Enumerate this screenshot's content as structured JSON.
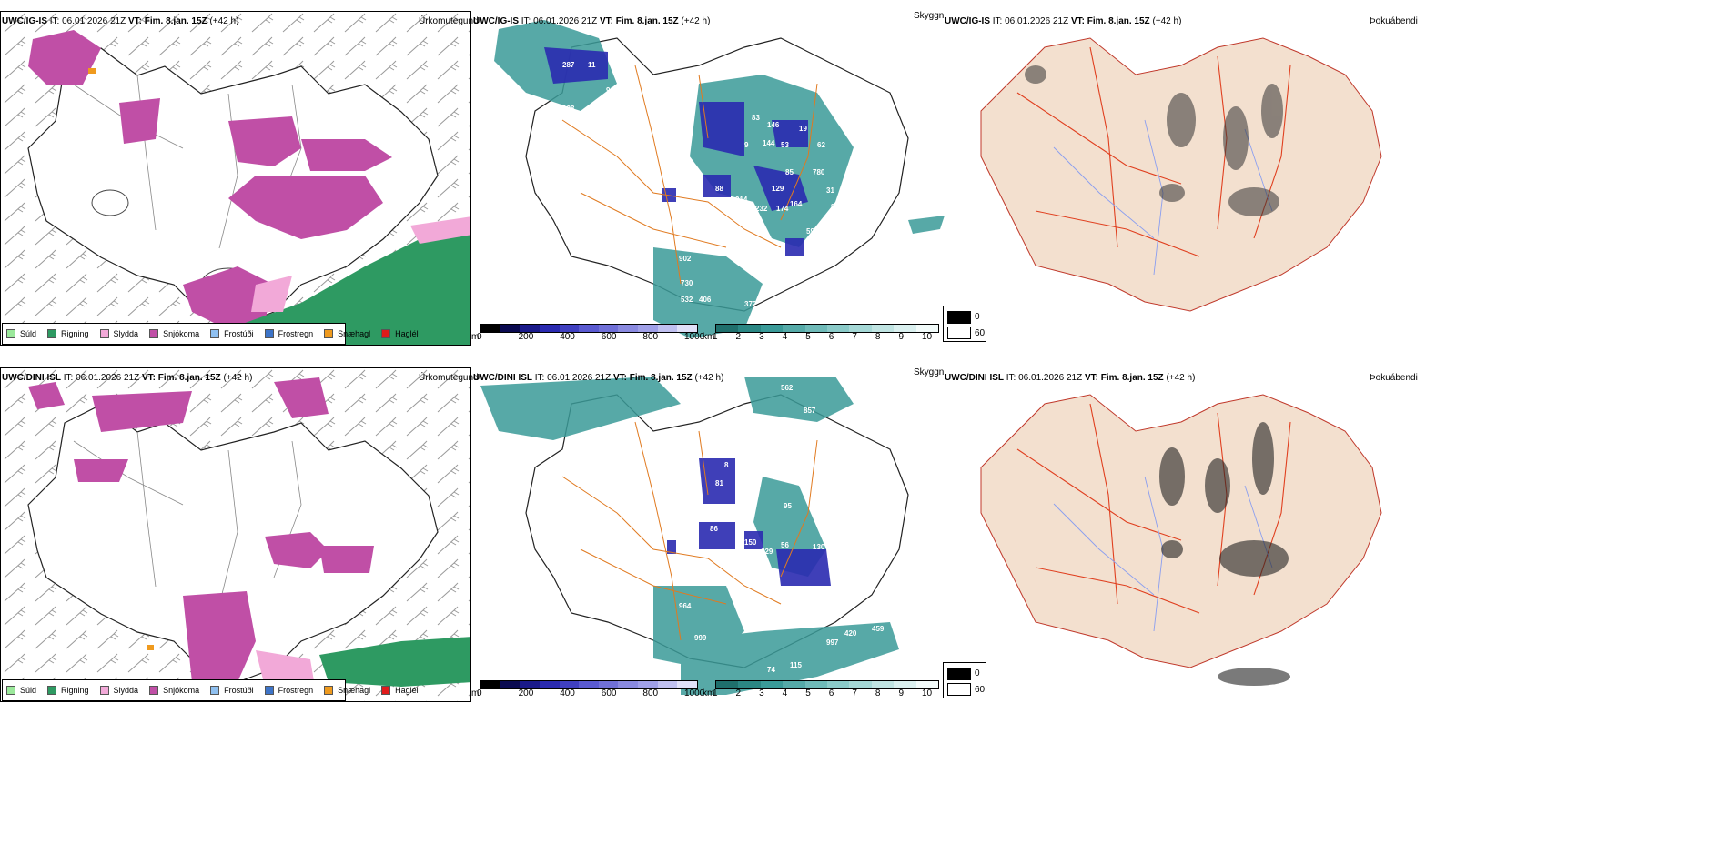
{
  "colors": {
    "snow": "#c04fa6",
    "rain": "#2e9a62",
    "sleet": "#f2a9d8",
    "drizzle": "#9be89b",
    "freezing_drizzle": "#8fc0f0",
    "freezing_rain": "#3d74c8",
    "snow_pellets": "#ef9a1e",
    "hail": "#e01b1b",
    "cloud_teal": "#3a9a98",
    "cloud_blue": "#2a2ab0",
    "land": "#f3e0cf",
    "roads": "#e07a20",
    "rivers": "#8a9ef0"
  },
  "rows": [
    {
      "model": "UWC/IG-IS",
      "it_label": "IT:",
      "it_value": "06.01.2026 21Z",
      "vt_label": "VT:",
      "vt_value": "Fim. 8.jan. 15Z",
      "lead": "(+42 h)",
      "precip_title": "Úrkomutegund",
      "cloud_title": "Skyggni",
      "fog_title": "Þokuábendi",
      "cloud_labels": [
        "287",
        "11",
        "909",
        "128",
        "83",
        "146",
        "19",
        "62",
        "9",
        "144",
        "53",
        "85",
        "780",
        "88",
        "116",
        "214",
        "129",
        "174",
        "232",
        "164",
        "31",
        "84",
        "59",
        "39",
        "902",
        "730",
        "532",
        "406",
        "372"
      ]
    },
    {
      "model": "UWC/DINI ISL",
      "it_label": "IT:",
      "it_value": "06.01.2026 21Z",
      "vt_label": "VT:",
      "vt_value": "Fim. 8.jan. 15Z",
      "lead": "(+42 h)",
      "precip_title": "Úrkomutegund",
      "cloud_title": "Skyggni",
      "fog_title": "Þokuábendi",
      "cloud_labels": [
        "562",
        "857",
        "796",
        "56",
        "8",
        "81",
        "37",
        "377",
        "95",
        "116",
        "86",
        "150",
        "129",
        "56",
        "130",
        "86",
        "976",
        "964",
        "999",
        "997",
        "420",
        "459",
        "74",
        "115"
      ]
    }
  ],
  "precip_legend": [
    "Súld",
    "Rigning",
    "Slydda",
    "Snjókoma",
    "Frostúði",
    "Frostregn",
    "Snæhagl",
    "Haglél"
  ],
  "cloudbase_bar": {
    "unit": "m",
    "ticks": [
      "0",
      "200",
      "400",
      "600",
      "800",
      "1000"
    ]
  },
  "visibility_bar": {
    "unit": "km",
    "ticks": [
      "1",
      "2",
      "3",
      "4",
      "5",
      "6",
      "7",
      "8",
      "9",
      "10"
    ]
  },
  "fog_legend": {
    "values": [
      "0",
      "60"
    ]
  }
}
